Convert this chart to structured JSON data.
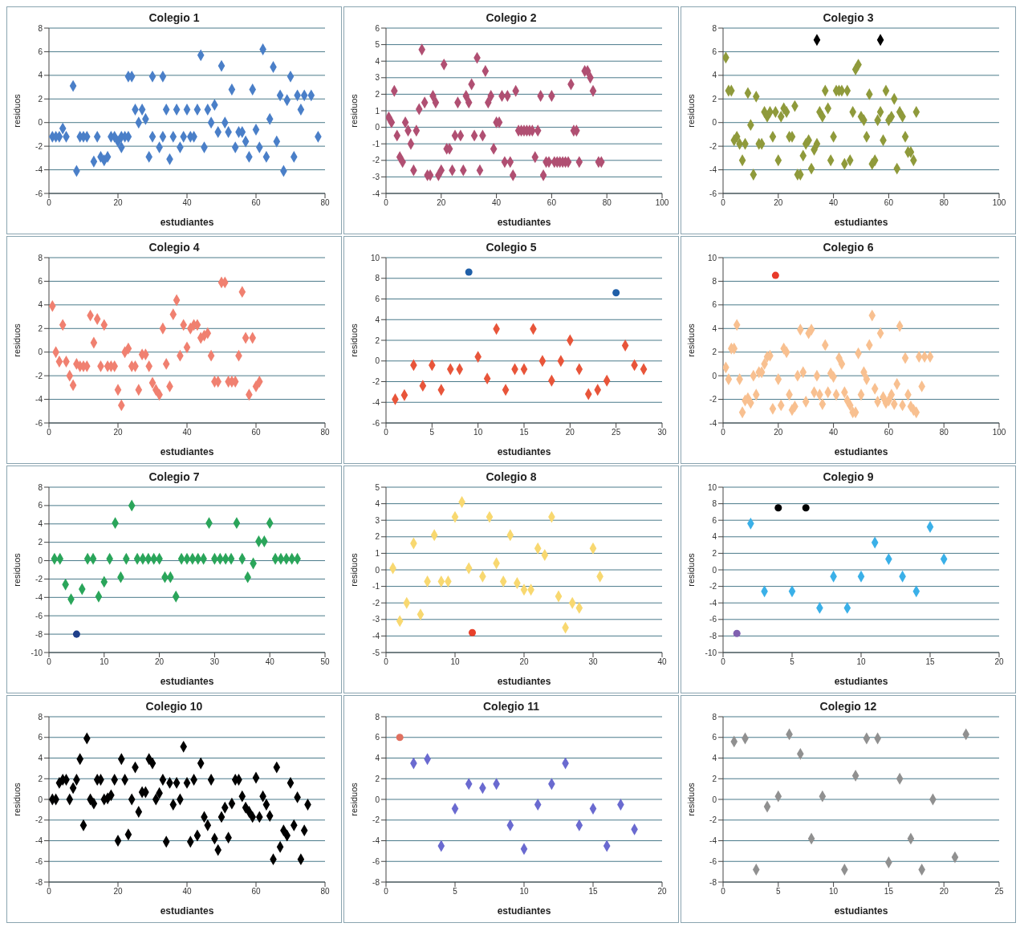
{
  "chart_data": [
    {
      "type": "scatter",
      "title": "Colegio 1",
      "xlabel": "estudiantes",
      "ylabel": "residuos",
      "xlim": [
        0,
        80
      ],
      "xticks": [
        0,
        20,
        40,
        60,
        80
      ],
      "ylim": [
        -6,
        8
      ],
      "yticks": [
        -6,
        -4,
        -2,
        0,
        2,
        4,
        6,
        8
      ],
      "grid": "y",
      "marker": "diamond",
      "series": [
        {
          "color": "#4a7fc8",
          "x": [
            1,
            2,
            3,
            4,
            5,
            7,
            8,
            9,
            10,
            11,
            13,
            14,
            15,
            16,
            17,
            18,
            19,
            20,
            21,
            21,
            22,
            23,
            23,
            24,
            25,
            26,
            27,
            28,
            29,
            30,
            30,
            32,
            33,
            33,
            34,
            35,
            36,
            37,
            38,
            39,
            40,
            41,
            42,
            43,
            44,
            45,
            46,
            47,
            48,
            49,
            50,
            51,
            52,
            53,
            54,
            55,
            56,
            57,
            58,
            59,
            60,
            61,
            62,
            63,
            64,
            65,
            66,
            67,
            68,
            69,
            70,
            71,
            72,
            73,
            74,
            76,
            78
          ],
          "values": [
            -1.2,
            -1.2,
            -1.2,
            -0.5,
            -1.2,
            3.1,
            -4.1,
            -1.2,
            -1.2,
            -1.2,
            -3.3,
            -1.2,
            -2.9,
            -3.2,
            -2.9,
            -1.2,
            -1.2,
            -1.6,
            -2.1,
            -1.2,
            -1.2,
            3.9,
            -1.2,
            3.9,
            1.1,
            0,
            1.1,
            0.3,
            -2.9,
            3.9,
            -1.2,
            -2.1,
            3.9,
            -1.2,
            1.1,
            -3.1,
            -1.2,
            1.1,
            -2.1,
            -1.2,
            1.1,
            -1.2,
            -1.2,
            1.1,
            5.7,
            -2.1,
            1.1,
            0,
            1.5,
            -0.8,
            4.8,
            0,
            -0.8,
            2.8,
            -2.1,
            -0.8,
            -0.8,
            -1.6,
            -2.9,
            2.8,
            -0.6,
            -2.1,
            6.2,
            -2.9,
            0.3,
            4.7,
            -1.6,
            2.3,
            -4.1,
            1.9,
            3.9,
            -2.9,
            2.3,
            1.1,
            2.3,
            2.3,
            -1.2
          ]
        }
      ]
    },
    {
      "type": "scatter",
      "title": "Colegio 2",
      "xlabel": "estudiantes",
      "ylabel": "residuos",
      "xlim": [
        0,
        100
      ],
      "xticks": [
        0,
        20,
        40,
        60,
        80,
        100
      ],
      "ylim": [
        -4,
        6
      ],
      "yticks": [
        -4,
        -3,
        -2,
        -1,
        0,
        1,
        2,
        3,
        4,
        5,
        6
      ],
      "grid": "y",
      "marker": "diamond",
      "series": [
        {
          "color": "#b04f72",
          "x": [
            1,
            2,
            3,
            4,
            5,
            6,
            7,
            8,
            9,
            10,
            11,
            12,
            13,
            14,
            15,
            16,
            17,
            18,
            19,
            20,
            21,
            22,
            23,
            24,
            25,
            26,
            27,
            28,
            29,
            30,
            31,
            32,
            33,
            34,
            35,
            36,
            37,
            38,
            39,
            40,
            41,
            42,
            43,
            44,
            45,
            46,
            47,
            48,
            49,
            50,
            51,
            52,
            53,
            54,
            55,
            56,
            57,
            58,
            59,
            60,
            61,
            62,
            63,
            64,
            65,
            66,
            67,
            68,
            69,
            70,
            72,
            73,
            74,
            75,
            77,
            78
          ],
          "values": [
            0.6,
            0.3,
            2.2,
            -0.5,
            -1.8,
            -2.1,
            0.3,
            -0.2,
            -1.0,
            -2.6,
            -0.2,
            1.1,
            4.7,
            1.5,
            -2.9,
            -2.9,
            1.9,
            1.5,
            -2.9,
            -2.6,
            3.8,
            -1.3,
            -1.3,
            -2.6,
            -0.5,
            1.5,
            -0.5,
            -2.6,
            1.9,
            1.5,
            2.6,
            -0.5,
            4.2,
            -2.6,
            -0.5,
            3.4,
            1.5,
            1.9,
            -1.3,
            0.3,
            0.3,
            1.9,
            -2.1,
            1.9,
            -2.1,
            -2.9,
            2.2,
            -0.2,
            -0.2,
            -0.2,
            -0.2,
            -0.2,
            -0.2,
            -1.8,
            -0.2,
            1.9,
            -2.9,
            -2.1,
            -2.1,
            1.9,
            -2.1,
            -2.1,
            -2.1,
            -2.1,
            -2.1,
            -2.1,
            2.6,
            -0.2,
            -0.2,
            -2.1,
            3.4,
            3.4,
            3.0,
            2.2,
            -2.1,
            -2.1
          ]
        }
      ]
    },
    {
      "type": "scatter",
      "title": "Colegio 3",
      "xlabel": "estudiantes",
      "ylabel": "residuos",
      "xlim": [
        0,
        100
      ],
      "xticks": [
        0,
        20,
        40,
        60,
        80,
        100
      ],
      "ylim": [
        -6,
        8
      ],
      "yticks": [
        -6,
        -4,
        -2,
        0,
        2,
        4,
        6,
        8
      ],
      "grid": "y",
      "marker": "diamond",
      "series": [
        {
          "color": "#8f9a3b",
          "x": [
            1,
            2,
            3,
            4,
            5,
            6,
            7,
            8,
            9,
            10,
            11,
            12,
            13,
            14,
            15,
            16,
            17,
            18,
            19,
            20,
            21,
            22,
            23,
            24,
            25,
            26,
            27,
            28,
            29,
            30,
            31,
            32,
            33,
            34,
            35,
            36,
            37,
            38,
            39,
            40,
            41,
            42,
            43,
            44,
            45,
            46,
            47,
            48,
            49,
            50,
            51,
            52,
            53,
            54,
            55,
            56,
            57,
            58,
            59,
            60,
            61,
            62,
            63,
            64,
            65,
            66,
            67,
            68,
            69,
            70
          ],
          "values": [
            5.5,
            2.7,
            2.7,
            -1.5,
            -1.2,
            -1.8,
            -3.2,
            -1.8,
            2.5,
            -0.2,
            -4.4,
            2.2,
            -1.8,
            -1.8,
            0.9,
            0.5,
            0.9,
            -1.2,
            0.9,
            -3.2,
            0.5,
            1.2,
            0.9,
            -1.2,
            -1.2,
            1.4,
            -4.4,
            -4.4,
            -2.8,
            -1.8,
            -1.5,
            -3.9,
            -2.3,
            -1.8,
            0.9,
            0.5,
            2.7,
            1.2,
            -3.2,
            -1.2,
            2.7,
            2.7,
            2.7,
            -3.5,
            2.7,
            -3.2,
            0.9,
            4.5,
            4.9,
            0.5,
            0.2,
            -1.2,
            2.4,
            -3.5,
            -3.2,
            0.2,
            0.9,
            -1.5,
            2.7,
            0.2,
            0.5,
            2.0,
            -3.9,
            0.9,
            0.5,
            -1.2,
            -2.5,
            -2.5,
            -3.2,
            0.9
          ]
        },
        {
          "color": "#000000",
          "x": [
            34,
            57
          ],
          "values": [
            7,
            7
          ]
        }
      ]
    },
    {
      "type": "scatter",
      "title": "Colegio 4",
      "xlabel": "estudiantes",
      "ylabel": "residuos",
      "xlim": [
        0,
        80
      ],
      "xticks": [
        0,
        20,
        40,
        60,
        80
      ],
      "ylim": [
        -6,
        8
      ],
      "yticks": [
        -6,
        -4,
        -2,
        0,
        2,
        4,
        6,
        8
      ],
      "grid": "y",
      "marker": "diamond",
      "series": [
        {
          "color": "#f08070",
          "x": [
            1,
            2,
            3,
            4,
            5,
            6,
            7,
            8,
            9,
            10,
            11,
            12,
            13,
            14,
            15,
            16,
            17,
            18,
            19,
            20,
            21,
            22,
            23,
            24,
            25,
            26,
            27,
            28,
            29,
            30,
            31,
            32,
            33,
            34,
            35,
            36,
            37,
            38,
            39,
            40,
            41,
            42,
            43,
            44,
            45,
            46,
            47,
            48,
            49,
            50,
            51,
            52,
            53,
            54,
            55,
            56,
            57,
            58,
            59,
            60,
            61
          ],
          "values": [
            3.9,
            0,
            -0.8,
            2.3,
            -0.8,
            -2,
            -2.8,
            -1,
            -1.2,
            -1.2,
            -1.2,
            3.1,
            0.8,
            2.8,
            -1.2,
            2.3,
            -1.2,
            -1.2,
            -1.2,
            -3.2,
            -4.5,
            0,
            0.3,
            -1.2,
            -1.2,
            -3.2,
            -0.2,
            -0.2,
            -1.2,
            -2.6,
            -3.2,
            -3.6,
            2,
            -1,
            -2.9,
            3.2,
            4.4,
            -0.3,
            2.3,
            0.4,
            2,
            2.3,
            2.3,
            1.2,
            1.4,
            1.6,
            -0.3,
            -2.5,
            -2.5,
            5.9,
            5.9,
            -2.5,
            -2.5,
            -2.5,
            -0.3,
            5.1,
            1.2,
            -3.6,
            1.2,
            -2.9,
            -2.5
          ]
        }
      ]
    },
    {
      "type": "scatter",
      "title": "Colegio 5",
      "xlabel": "estudiantes",
      "ylabel": "residuos",
      "xlim": [
        0,
        30
      ],
      "xticks": [
        0,
        5,
        10,
        15,
        20,
        25,
        30
      ],
      "ylim": [
        -6,
        10
      ],
      "yticks": [
        -6,
        -4,
        -2,
        0,
        2,
        4,
        6,
        8,
        10
      ],
      "grid": "y",
      "marker": "diamond",
      "series": [
        {
          "color": "#e8553a",
          "x": [
            1,
            2,
            3,
            4,
            5,
            6,
            7,
            8,
            10,
            11,
            12,
            13,
            14,
            15,
            16,
            17,
            18,
            19,
            20,
            21,
            22,
            23,
            24,
            26,
            27,
            28
          ],
          "values": [
            -3.7,
            -3.3,
            -0.4,
            -2.4,
            -0.4,
            -2.8,
            -0.8,
            -0.8,
            0.4,
            -1.7,
            3.1,
            -2.8,
            -0.8,
            -0.8,
            3.1,
            0,
            -1.9,
            0,
            2,
            -0.8,
            -3.2,
            -2.8,
            -1.9,
            1.5,
            -0.4,
            -0.8
          ]
        },
        {
          "color": "#1f5fa8",
          "marker": "circle",
          "x": [
            9,
            25
          ],
          "values": [
            8.6,
            6.6
          ]
        }
      ]
    },
    {
      "type": "scatter",
      "title": "Colegio 6",
      "xlabel": "estudiantes",
      "ylabel": "residuos",
      "xlim": [
        0,
        100
      ],
      "xticks": [
        0,
        20,
        40,
        60,
        80,
        100
      ],
      "ylim": [
        -4,
        10
      ],
      "yticks": [
        -4,
        -2,
        0,
        2,
        4,
        6,
        8,
        10
      ],
      "grid": "y",
      "marker": "diamond",
      "series": [
        {
          "color": "#f8c090",
          "x": [
            1,
            2,
            3,
            4,
            5,
            6,
            7,
            8,
            9,
            10,
            11,
            12,
            13,
            14,
            15,
            16,
            17,
            18,
            20,
            21,
            22,
            23,
            24,
            25,
            26,
            27,
            28,
            29,
            30,
            31,
            32,
            33,
            34,
            35,
            36,
            37,
            38,
            39,
            40,
            41,
            42,
            43,
            44,
            45,
            46,
            47,
            48,
            49,
            50,
            51,
            52,
            53,
            54,
            55,
            56,
            57,
            58,
            59,
            60,
            61,
            62,
            63,
            64,
            65,
            66,
            67,
            68,
            69,
            70,
            71,
            72,
            73,
            75
          ],
          "values": [
            0.7,
            -0.3,
            2.3,
            2.3,
            4.3,
            -0.3,
            -3.1,
            -2.1,
            -1.9,
            -2.3,
            0,
            -1.6,
            0.3,
            0.3,
            1,
            1.6,
            1.7,
            -2.8,
            -0.3,
            -2.5,
            2.3,
            2,
            -1.6,
            -2.9,
            -2.6,
            0,
            3.9,
            0.3,
            -2.2,
            3.6,
            3.9,
            -1.4,
            0,
            -1.6,
            -2.4,
            2.6,
            -1.4,
            0.2,
            -0.1,
            -1.6,
            1.5,
            1,
            -1.4,
            -2.1,
            -2.5,
            -3.1,
            -3.1,
            1.9,
            -1.6,
            0.3,
            -0.3,
            2.6,
            5.1,
            -1.1,
            -2.2,
            3.6,
            -1.8,
            -2.3,
            -2.1,
            -1.6,
            -2.4,
            -0.7,
            4.2,
            -2.5,
            1.5,
            -1.6,
            -2.6,
            -2.9,
            -3.1,
            1.6,
            -0.9,
            1.6,
            1.6
          ]
        },
        {
          "color": "#e83a2a",
          "marker": "circle",
          "x": [
            19
          ],
          "values": [
            8.5
          ]
        }
      ]
    },
    {
      "type": "scatter",
      "title": "Colegio 7",
      "xlabel": "estudiantes",
      "ylabel": "residuos",
      "xlim": [
        0,
        50
      ],
      "xticks": [
        0,
        10,
        20,
        30,
        40,
        50
      ],
      "ylim": [
        -10,
        8
      ],
      "yticks": [
        -10,
        -8,
        -6,
        -4,
        -2,
        0,
        2,
        4,
        6,
        8
      ],
      "grid": "y",
      "marker": "diamond",
      "series": [
        {
          "color": "#2aa55a",
          "x": [
            1,
            2,
            3,
            4,
            6,
            7,
            8,
            9,
            10,
            11,
            12,
            13,
            14,
            15,
            16,
            17,
            18,
            19,
            20,
            21,
            22,
            23,
            24,
            25,
            26,
            27,
            28,
            29,
            30,
            31,
            32,
            33,
            34,
            35,
            36,
            37,
            38,
            39,
            40,
            41,
            42,
            43,
            44,
            45
          ],
          "values": [
            0.2,
            0.2,
            -2.6,
            -4.2,
            -3.1,
            0.2,
            0.2,
            -3.9,
            -2.3,
            0.2,
            4.1,
            -1.8,
            0.2,
            6,
            0.2,
            0.2,
            0.2,
            0.2,
            0.2,
            -1.8,
            -1.8,
            -3.9,
            0.2,
            0.2,
            0.2,
            0.2,
            0.2,
            4.1,
            0.2,
            0.2,
            0.2,
            0.2,
            4.1,
            0.2,
            -1.8,
            -0.3,
            2.1,
            2.1,
            4.1,
            0.2,
            0.2,
            0.2,
            0.2,
            0.2
          ]
        },
        {
          "color": "#1f3f8a",
          "marker": "circle",
          "x": [
            5
          ],
          "values": [
            -8
          ]
        }
      ]
    },
    {
      "type": "scatter",
      "title": "Colegio 8",
      "xlabel": "estudiantes",
      "ylabel": "residuos",
      "xlim": [
        0,
        40
      ],
      "xticks": [
        0,
        10,
        20,
        30,
        40
      ],
      "ylim": [
        -5,
        5
      ],
      "yticks": [
        -5,
        -4,
        -3,
        -2,
        -1,
        0,
        1,
        2,
        3,
        4,
        5
      ],
      "grid": "y",
      "marker": "diamond",
      "series": [
        {
          "color": "#f8d870",
          "x": [
            1,
            2,
            3,
            4,
            5,
            6,
            7,
            8,
            9,
            10,
            11,
            12,
            14,
            15,
            16,
            17,
            18,
            19,
            20,
            21,
            22,
            23,
            24,
            25,
            26,
            27,
            28,
            30,
            31
          ],
          "values": [
            0.1,
            -3.1,
            -2,
            1.6,
            -2.7,
            -0.7,
            2.1,
            -0.7,
            -0.7,
            3.2,
            4.1,
            0.1,
            -0.4,
            3.2,
            0.4,
            -0.7,
            2.1,
            -0.8,
            -1.2,
            -1.2,
            1.3,
            0.9,
            3.2,
            -1.6,
            -3.5,
            -2,
            -2.3,
            1.3,
            -0.4
          ]
        },
        {
          "color": "#e8402a",
          "marker": "circle",
          "x": [
            12.5
          ],
          "values": [
            -3.8
          ]
        }
      ]
    },
    {
      "type": "scatter",
      "title": "Colegio 9",
      "xlabel": "estudiantes",
      "ylabel": "residuos",
      "xlim": [
        0,
        20
      ],
      "xticks": [
        0,
        5,
        10,
        15,
        20
      ],
      "ylim": [
        -10,
        10
      ],
      "yticks": [
        -10,
        -8,
        -6,
        -4,
        -2,
        0,
        2,
        4,
        6,
        8,
        10
      ],
      "grid": "y",
      "marker": "diamond",
      "series": [
        {
          "color": "#3ab0e8",
          "x": [
            2,
            3,
            5,
            7,
            8,
            9,
            10,
            11,
            12,
            13,
            14,
            15,
            16
          ],
          "values": [
            5.6,
            -2.6,
            -2.6,
            -4.6,
            -0.8,
            -4.6,
            -0.8,
            3.3,
            1.3,
            -0.8,
            -2.6,
            5.2,
            1.3
          ]
        },
        {
          "color": "#000000",
          "marker": "circle",
          "x": [
            4,
            6
          ],
          "values": [
            7.5,
            7.5
          ]
        },
        {
          "color": "#8060b0",
          "marker": "circle",
          "x": [
            1
          ],
          "values": [
            -7.7
          ]
        }
      ]
    },
    {
      "type": "scatter",
      "title": "Colegio 10",
      "xlabel": "estudiantes",
      "ylabel": "residuos",
      "xlim": [
        0,
        80
      ],
      "xticks": [
        0,
        20,
        40,
        60,
        80
      ],
      "ylim": [
        -8,
        8
      ],
      "yticks": [
        -8,
        -6,
        -4,
        -2,
        0,
        2,
        4,
        6,
        8
      ],
      "grid": "y",
      "marker": "diamond",
      "series": [
        {
          "color": "#000000",
          "x": [
            1,
            2,
            3,
            4,
            5,
            6,
            7,
            8,
            9,
            10,
            11,
            12,
            13,
            14,
            15,
            16,
            17,
            18,
            19,
            20,
            21,
            22,
            23,
            24,
            25,
            26,
            27,
            28,
            29,
            30,
            31,
            32,
            33,
            34,
            35,
            36,
            37,
            38,
            39,
            40,
            41,
            42,
            43,
            44,
            45,
            46,
            47,
            48,
            49,
            50,
            51,
            52,
            53,
            54,
            55,
            56,
            57,
            58,
            59,
            60,
            61,
            62,
            63,
            64,
            65,
            66,
            67,
            68,
            69,
            70,
            71,
            72,
            73,
            74,
            75
          ],
          "values": [
            0,
            0,
            1.6,
            1.9,
            1.9,
            0,
            1.1,
            1.9,
            3.9,
            -2.5,
            5.9,
            0,
            -0.4,
            1.9,
            1.9,
            0,
            0.1,
            0.4,
            1.9,
            -4,
            3.9,
            1.9,
            -3.4,
            0,
            3.1,
            -1.2,
            0.7,
            0.7,
            3.9,
            3.5,
            0,
            0.6,
            1.9,
            -4.1,
            1.6,
            -0.5,
            1.6,
            0,
            5.1,
            1.6,
            -4.1,
            1.9,
            -3.5,
            3.5,
            -1.7,
            -2.5,
            1.9,
            -3.8,
            -4.9,
            -1.7,
            -0.8,
            -3.7,
            -0.4,
            1.9,
            1.9,
            0.3,
            -0.8,
            -1.2,
            -1.7,
            2.1,
            -1.7,
            0.3,
            -0.5,
            -1.6,
            -5.8,
            3.1,
            -4.6,
            -3,
            -3.5,
            1.6,
            -2.5,
            0.2,
            -5.8,
            -3,
            -0.5
          ]
        }
      ]
    },
    {
      "type": "scatter",
      "title": "Colegio 11",
      "xlabel": "estudiantes",
      "ylabel": "residuos",
      "xlim": [
        0,
        20
      ],
      "xticks": [
        0,
        5,
        10,
        15,
        20
      ],
      "ylim": [
        -8,
        8
      ],
      "yticks": [
        -8,
        -6,
        -4,
        -2,
        0,
        2,
        4,
        6,
        8
      ],
      "grid": "y",
      "marker": "diamond",
      "series": [
        {
          "color": "#6a6ad0",
          "x": [
            2,
            3,
            4,
            5,
            6,
            7,
            8,
            9,
            10,
            11,
            12,
            13,
            14,
            15,
            16,
            17,
            18
          ],
          "values": [
            3.5,
            3.9,
            -4.5,
            -0.9,
            1.5,
            1.1,
            1.5,
            -2.5,
            -4.8,
            -0.5,
            1.5,
            3.5,
            -2.5,
            -0.9,
            -4.5,
            -0.5,
            -2.9
          ]
        },
        {
          "color": "#e07060",
          "marker": "circle",
          "x": [
            1
          ],
          "values": [
            6
          ]
        }
      ]
    },
    {
      "type": "scatter",
      "title": "Colegio 12",
      "xlabel": "estudiantes",
      "ylabel": "residuos",
      "xlim": [
        0,
        25
      ],
      "xticks": [
        0,
        5,
        10,
        15,
        20,
        25
      ],
      "ylim": [
        -8,
        8
      ],
      "yticks": [
        -8,
        -6,
        -4,
        -2,
        0,
        2,
        4,
        6,
        8
      ],
      "grid": "y",
      "marker": "diamond",
      "series": [
        {
          "color": "#909090",
          "x": [
            1,
            2,
            3,
            4,
            5,
            6,
            7,
            8,
            9,
            11,
            12,
            13,
            14,
            15,
            16,
            17,
            18,
            19,
            21,
            22
          ],
          "values": [
            5.6,
            5.9,
            -6.8,
            -0.7,
            0.3,
            6.3,
            4.4,
            -3.8,
            0.3,
            -6.8,
            2.3,
            5.9,
            5.9,
            -6.1,
            2.0,
            -3.8,
            -6.8,
            0,
            -5.6,
            6.3
          ]
        }
      ]
    }
  ]
}
